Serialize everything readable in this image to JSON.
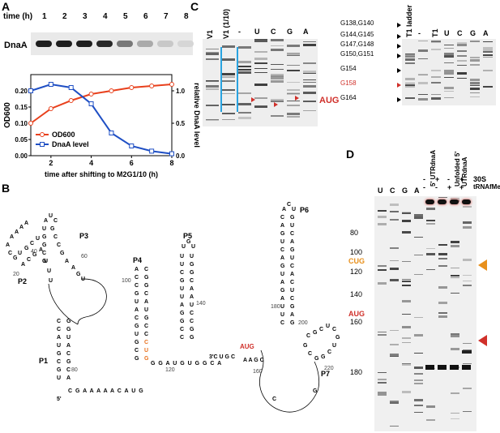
{
  "panels": {
    "a": "A",
    "b": "B",
    "c": "C",
    "d": "D"
  },
  "panel_a": {
    "time_label": "time (h)",
    "time_points": [
      "1",
      "2",
      "3",
      "4",
      "5",
      "6",
      "7",
      "8"
    ],
    "row_label": "DnaA",
    "band_intensity": [
      1.0,
      1.0,
      1.0,
      0.95,
      0.55,
      0.3,
      0.15,
      0.08
    ]
  },
  "chart_data": {
    "type": "line",
    "xlabel": "time after shifting to M2G1/10 (h)",
    "ylabel_left": "OD600",
    "ylabel_right": "relative DnaA level",
    "xlim": [
      1,
      8
    ],
    "ylim_left": [
      0,
      0.25
    ],
    "ylim_right": [
      0,
      1.25
    ],
    "x_ticks": [
      "2",
      "4",
      "6",
      "8"
    ],
    "y_left_ticks": [
      "0.00",
      "0.05",
      "0.10",
      "0.15",
      "0.20"
    ],
    "y_right_ticks": [
      "0.0",
      "0.5",
      "1.0"
    ],
    "series": [
      {
        "name": "OD600",
        "color": "#e8401c",
        "axis": "left",
        "x": [
          1,
          2,
          3,
          4,
          5,
          6,
          7,
          8
        ],
        "y": [
          0.1,
          0.145,
          0.17,
          0.19,
          0.2,
          0.21,
          0.215,
          0.22
        ]
      },
      {
        "name": "DnaA level",
        "color": "#1f4fc4",
        "axis": "right",
        "x": [
          1,
          2,
          3,
          4,
          5,
          6,
          7,
          8
        ],
        "y": [
          1.0,
          1.1,
          1.05,
          0.8,
          0.35,
          0.15,
          0.07,
          0.03
        ]
      }
    ],
    "legend": [
      "OD600",
      "DnaA level"
    ],
    "legend_position": "bottom-left"
  },
  "panel_b": {
    "labels": {
      "p1": "P1",
      "p2": "P2",
      "p3": "P3",
      "p4": "P4",
      "p5": "P5",
      "p6": "P6",
      "p7": "P7",
      "five_prime": "5'",
      "three_prime": "3'",
      "aug": "AUG"
    },
    "numbers": [
      "20",
      "40",
      "60",
      "80",
      "100",
      "120",
      "140",
      "160",
      "180",
      "200",
      "220"
    ],
    "linker": "C G A A A A A C A U G",
    "linker2": "G G A U G U G G C A",
    "aug_color": "#d0302a",
    "highlight_color": "#e8701c"
  },
  "panel_c": {
    "left_lanes": [
      "V1",
      "V1 (1/10)",
      "-",
      "U",
      "C",
      "G",
      "A"
    ],
    "aug_label": "AUG",
    "right_lanes": [
      "T1 ladder",
      "-",
      "T1",
      "U",
      "C",
      "G",
      "A"
    ],
    "right_labels": [
      "G138,G140",
      "G144,G145",
      "G147,G148",
      "G150,G151",
      "G154",
      "G158",
      "G164"
    ],
    "highlight_label": "G158"
  },
  "panel_d": {
    "lanes": [
      "U",
      "C",
      "G",
      "A"
    ],
    "header1": "5' UTRdnaA",
    "header2": "Unfolded 5' UTRdnaA",
    "row_30s": [
      "-",
      "+",
      "-",
      "+"
    ],
    "row_trna": [
      "-",
      "-",
      "+",
      "+"
    ],
    "row_30s_label": "30S",
    "row_trna_label": "tRNAfMet",
    "markers": [
      "80",
      "100",
      "120",
      "140",
      "160",
      "180"
    ],
    "cug_label": "CUG",
    "aug_label": "AUG",
    "cug_color": "#e8901c",
    "aug_color": "#d0302a"
  }
}
